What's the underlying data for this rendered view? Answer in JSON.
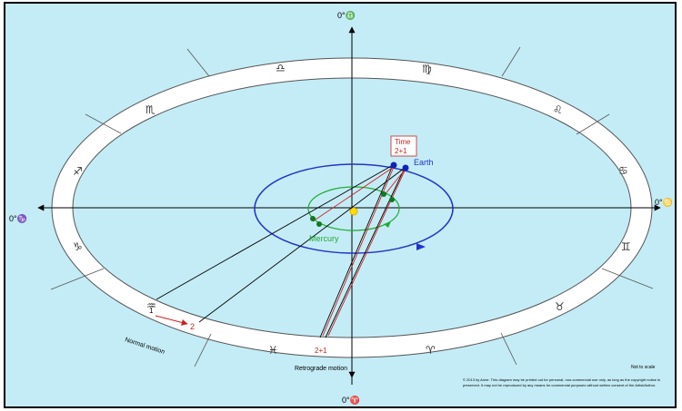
{
  "axis_labels": {
    "top": "0°♎",
    "bottom": "0°♈",
    "left": "0°♑",
    "right": "0°♋"
  },
  "zodiac": {
    "libra": "♎",
    "virgo": "♍",
    "leo": "♌",
    "cancer": "♋",
    "gemini": "♊",
    "taurus": "♉",
    "aries": "♈",
    "pisces": "♓",
    "aquarius": "♒",
    "capricorn": "♑",
    "sagittarius": "♐",
    "scorpio": "♏"
  },
  "planets": {
    "earth_label": "Earth",
    "mercury_label": "Mercury"
  },
  "time_marker": {
    "title": "Time",
    "value": "2+1"
  },
  "direct_motion": {
    "start": "1",
    "end": "2",
    "caption": "Normal motion"
  },
  "retrograde_motion": {
    "value": "2+1",
    "caption": "Retrograde motion"
  },
  "scale_note": "Not to scale",
  "copyright": "© 2013 by Anne. This diagram may be printed out for personal, non-commercial use only, as long as the copyright notice is preserved. It may not be reproduced by any means for commercial purposes without written consent of the Artist/Author.",
  "colors": {
    "sky": "#c4ecf6",
    "earth_orbit": "#2233cc",
    "mercury_orbit": "#22aa33",
    "sun": "#ffdd00",
    "direct_arrow": "#cc2222"
  }
}
